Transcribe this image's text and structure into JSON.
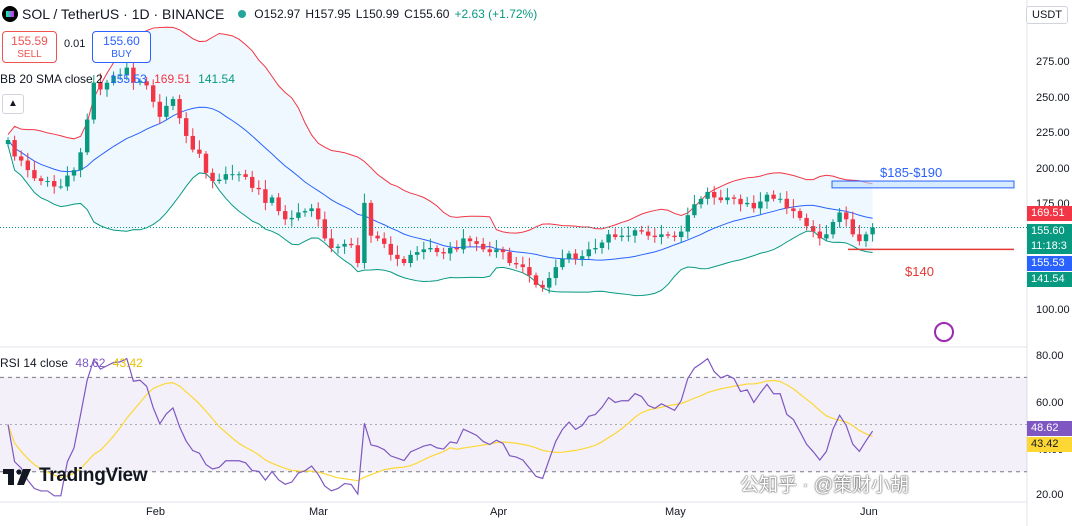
{
  "header": {
    "title": "SOL / TetherUS · 1D · BINANCE",
    "open": "O152.97",
    "high": "H157.95",
    "low": "L150.99",
    "close": "C155.60",
    "change": "+2.63 (+1.72%)"
  },
  "trade": {
    "sell_price": "155.59",
    "sell_label": "SELL",
    "spread": "0.01",
    "buy_price": "155.60",
    "buy_label": "BUY"
  },
  "bb_legend": {
    "name": "BB 20 SMA close 2",
    "basis": "155.53",
    "upper": "169.51",
    "lower": "141.54"
  },
  "rsi_legend": {
    "name": "RSI 14 close",
    "rsi": "48.62",
    "ma": "43.42"
  },
  "currency": "USDT",
  "price_axis": {
    "ticks": [
      "275.00",
      "250.00",
      "225.00",
      "200.00",
      "175.00",
      "100.00"
    ]
  },
  "price_labels": {
    "upper": "169.51",
    "last": "155.60",
    "countdown": "11:18:3",
    "basis": "155.53",
    "lower": "141.54"
  },
  "rsi_axis": {
    "ticks": [
      "80.00",
      "60.00",
      "40.00",
      "20.00"
    ]
  },
  "rsi_labels": {
    "rsi": "48.62",
    "ma": "43.42"
  },
  "x_axis": [
    "Feb",
    "Mar",
    "Apr",
    "May",
    "Jun"
  ],
  "annotations": {
    "resistance": "$185-$190",
    "support": "$140"
  },
  "logo": "TradingView",
  "watermark": "公知乎 · @策财小胡",
  "colors": {
    "up": "#089981",
    "down": "#f23645",
    "bb_basis": "#2962ff",
    "bb_upper": "#f23645",
    "bb_lower": "#089981",
    "rsi": "#7e57c2",
    "rsi_ma": "#fdd835"
  },
  "chart_data": {
    "type": "candlestick",
    "title": "SOL / TetherUS · 1D · BINANCE",
    "ylim": [
      70,
      302
    ],
    "rsi_ylim": [
      18,
      82
    ],
    "resistance_zone": [
      185,
      190
    ],
    "support": 140,
    "closes": [
      220,
      208,
      205,
      198,
      192,
      190,
      190,
      186,
      186,
      194,
      198,
      211,
      235,
      262,
      257,
      262,
      267,
      268,
      273,
      262,
      263,
      260,
      248,
      237,
      245,
      250,
      236,
      223,
      213,
      210,
      196,
      190,
      191,
      195,
      195,
      195,
      193,
      185,
      184,
      174,
      178,
      168,
      162,
      163,
      167,
      168,
      170,
      162,
      148,
      141,
      142,
      144,
      143,
      130,
      174,
      150,
      148,
      144,
      136,
      133,
      130,
      136,
      138,
      140,
      141,
      138,
      137,
      141,
      140,
      148,
      146,
      144,
      140,
      138,
      140,
      138,
      130,
      129,
      127,
      121,
      114,
      112,
      119,
      127,
      133,
      137,
      133,
      135,
      140,
      141,
      145,
      151,
      149,
      150,
      150,
      154,
      153,
      150,
      149,
      151,
      150,
      149,
      153,
      165,
      173,
      177,
      182,
      178,
      176,
      178,
      177,
      173,
      174,
      170,
      175,
      180,
      177,
      177,
      170,
      168,
      163,
      157,
      153,
      148,
      151,
      160,
      167,
      162,
      151,
      146,
      151,
      156
    ]
  }
}
